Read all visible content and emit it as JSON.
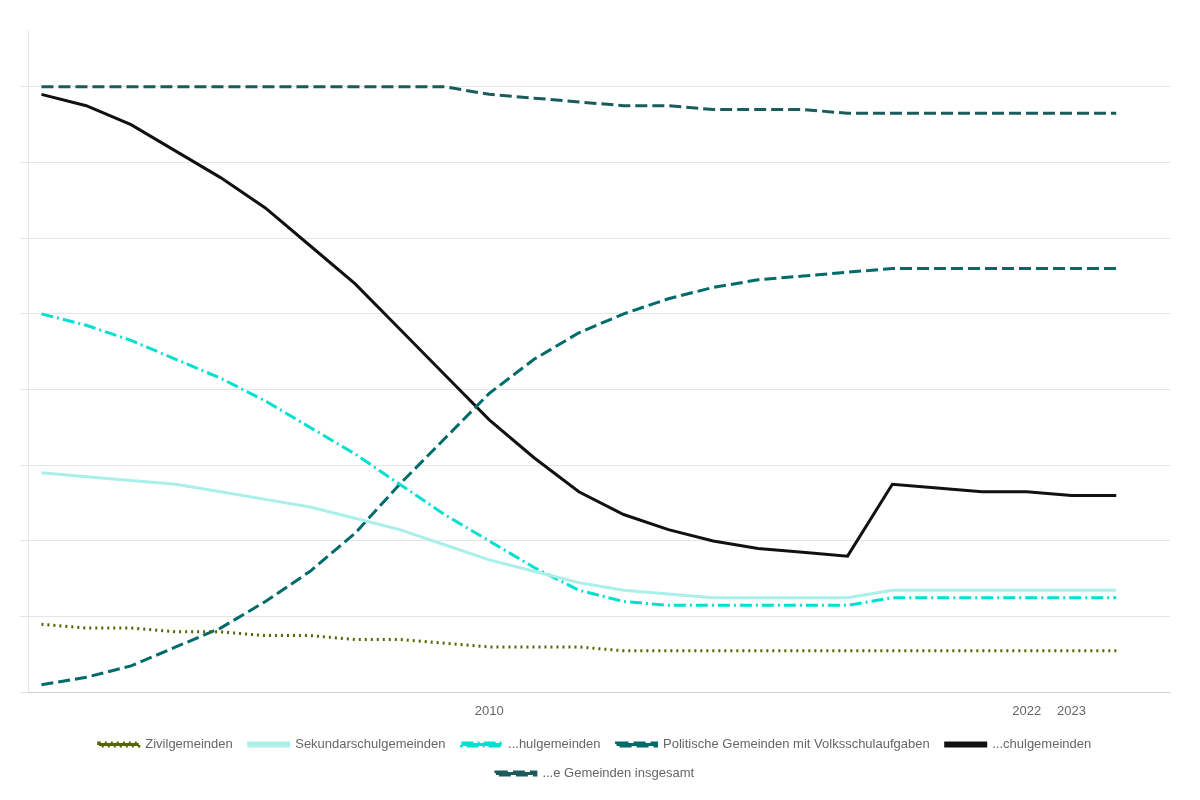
{
  "chart_data": {
    "type": "line",
    "xlim": [
      1999.7,
      2025.2
    ],
    "xticks": [
      2010,
      2022,
      2023
    ],
    "ylim": [
      0,
      175
    ],
    "yticks": [
      0,
      20,
      40,
      60,
      80,
      100,
      120,
      140,
      160
    ],
    "tick_labels": "x",
    "grid": true,
    "legend": "bottom",
    "x": [
      2000,
      2001,
      2002,
      2003,
      2004,
      2005,
      2006,
      2007,
      2008,
      2009,
      2010,
      2011,
      2012,
      2013,
      2014,
      2015,
      2016,
      2017,
      2018,
      2019,
      2020,
      2021,
      2022,
      2023,
      2024
    ],
    "series": [
      {
        "name": "Zivilgemeinden",
        "color": "#556600",
        "line_style": "dotted",
        "values": [
          18,
          17,
          17,
          16,
          16,
          15,
          15,
          14,
          14,
          13,
          12,
          12,
          12,
          11,
          11,
          11,
          11,
          11,
          11,
          11,
          11,
          11,
          11,
          11,
          11
        ]
      },
      {
        "name": "Sekundarschulgemeinden",
        "color": "#a8f0e8",
        "line_style": "solid",
        "values": [
          58,
          57,
          56,
          55,
          53,
          51,
          49,
          46,
          43,
          39,
          35,
          32,
          29,
          27,
          26,
          25,
          25,
          25,
          25,
          27,
          27,
          27,
          27,
          27,
          27
        ]
      },
      {
        "name": "...hulgemeinden",
        "color": "#00e0d0",
        "line_style": "dashdot",
        "values": [
          100,
          97,
          93,
          88,
          83,
          77,
          70,
          63,
          55,
          47,
          40,
          33,
          27,
          24,
          23,
          23,
          23,
          23,
          23,
          25,
          25,
          25,
          25,
          25,
          25
        ]
      },
      {
        "name": "Politische Gemeinden mit Volksschulaufgaben",
        "color": "#006b6b",
        "line_style": "dashed",
        "values": [
          2,
          4,
          7,
          12,
          17,
          24,
          32,
          42,
          55,
          67,
          79,
          88,
          95,
          100,
          104,
          107,
          109,
          110,
          111,
          112,
          112,
          112,
          112,
          112,
          112
        ]
      },
      {
        "name": "...chulgemeinden",
        "color": "#111111",
        "line_style": "solid",
        "values": [
          158,
          155,
          150,
          143,
          136,
          128,
          118,
          108,
          96,
          84,
          72,
          62,
          53,
          47,
          43,
          40,
          38,
          37,
          36,
          55,
          54,
          53,
          53,
          52,
          52
        ]
      },
      {
        "name": "...e Gemeinden insgesamt",
        "color": "#1a5c5c",
        "line_style": "dashed",
        "values": [
          160,
          160,
          160,
          160,
          160,
          160,
          160,
          160,
          160,
          160,
          158,
          157,
          156,
          155,
          155,
          154,
          154,
          154,
          153,
          153,
          153,
          153,
          153,
          153,
          153
        ]
      }
    ]
  }
}
